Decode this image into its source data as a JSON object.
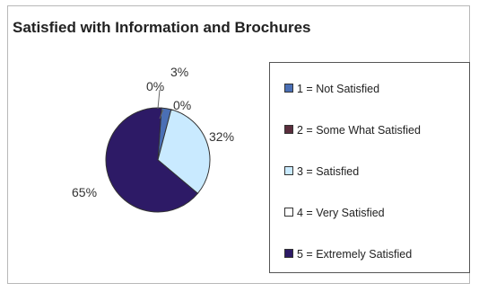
{
  "chart_data": {
    "type": "pie",
    "title": "Satisfied with Information and Brochures",
    "categories": [
      "1 = Not Satisfied",
      "2 = Some What Satisfied",
      "3 = Satisfied",
      "4 = Very Satisfied",
      "5 = Extremely Satisfied"
    ],
    "values": [
      3,
      0,
      32,
      0,
      65
    ],
    "labels": [
      "3%",
      "0%",
      "32%",
      "0%",
      "65%"
    ],
    "colors": [
      "#4a6fb5",
      "#5a2d3c",
      "#c9eaff",
      "#ffffff",
      "#2d1a66"
    ],
    "legend_position": "right"
  }
}
